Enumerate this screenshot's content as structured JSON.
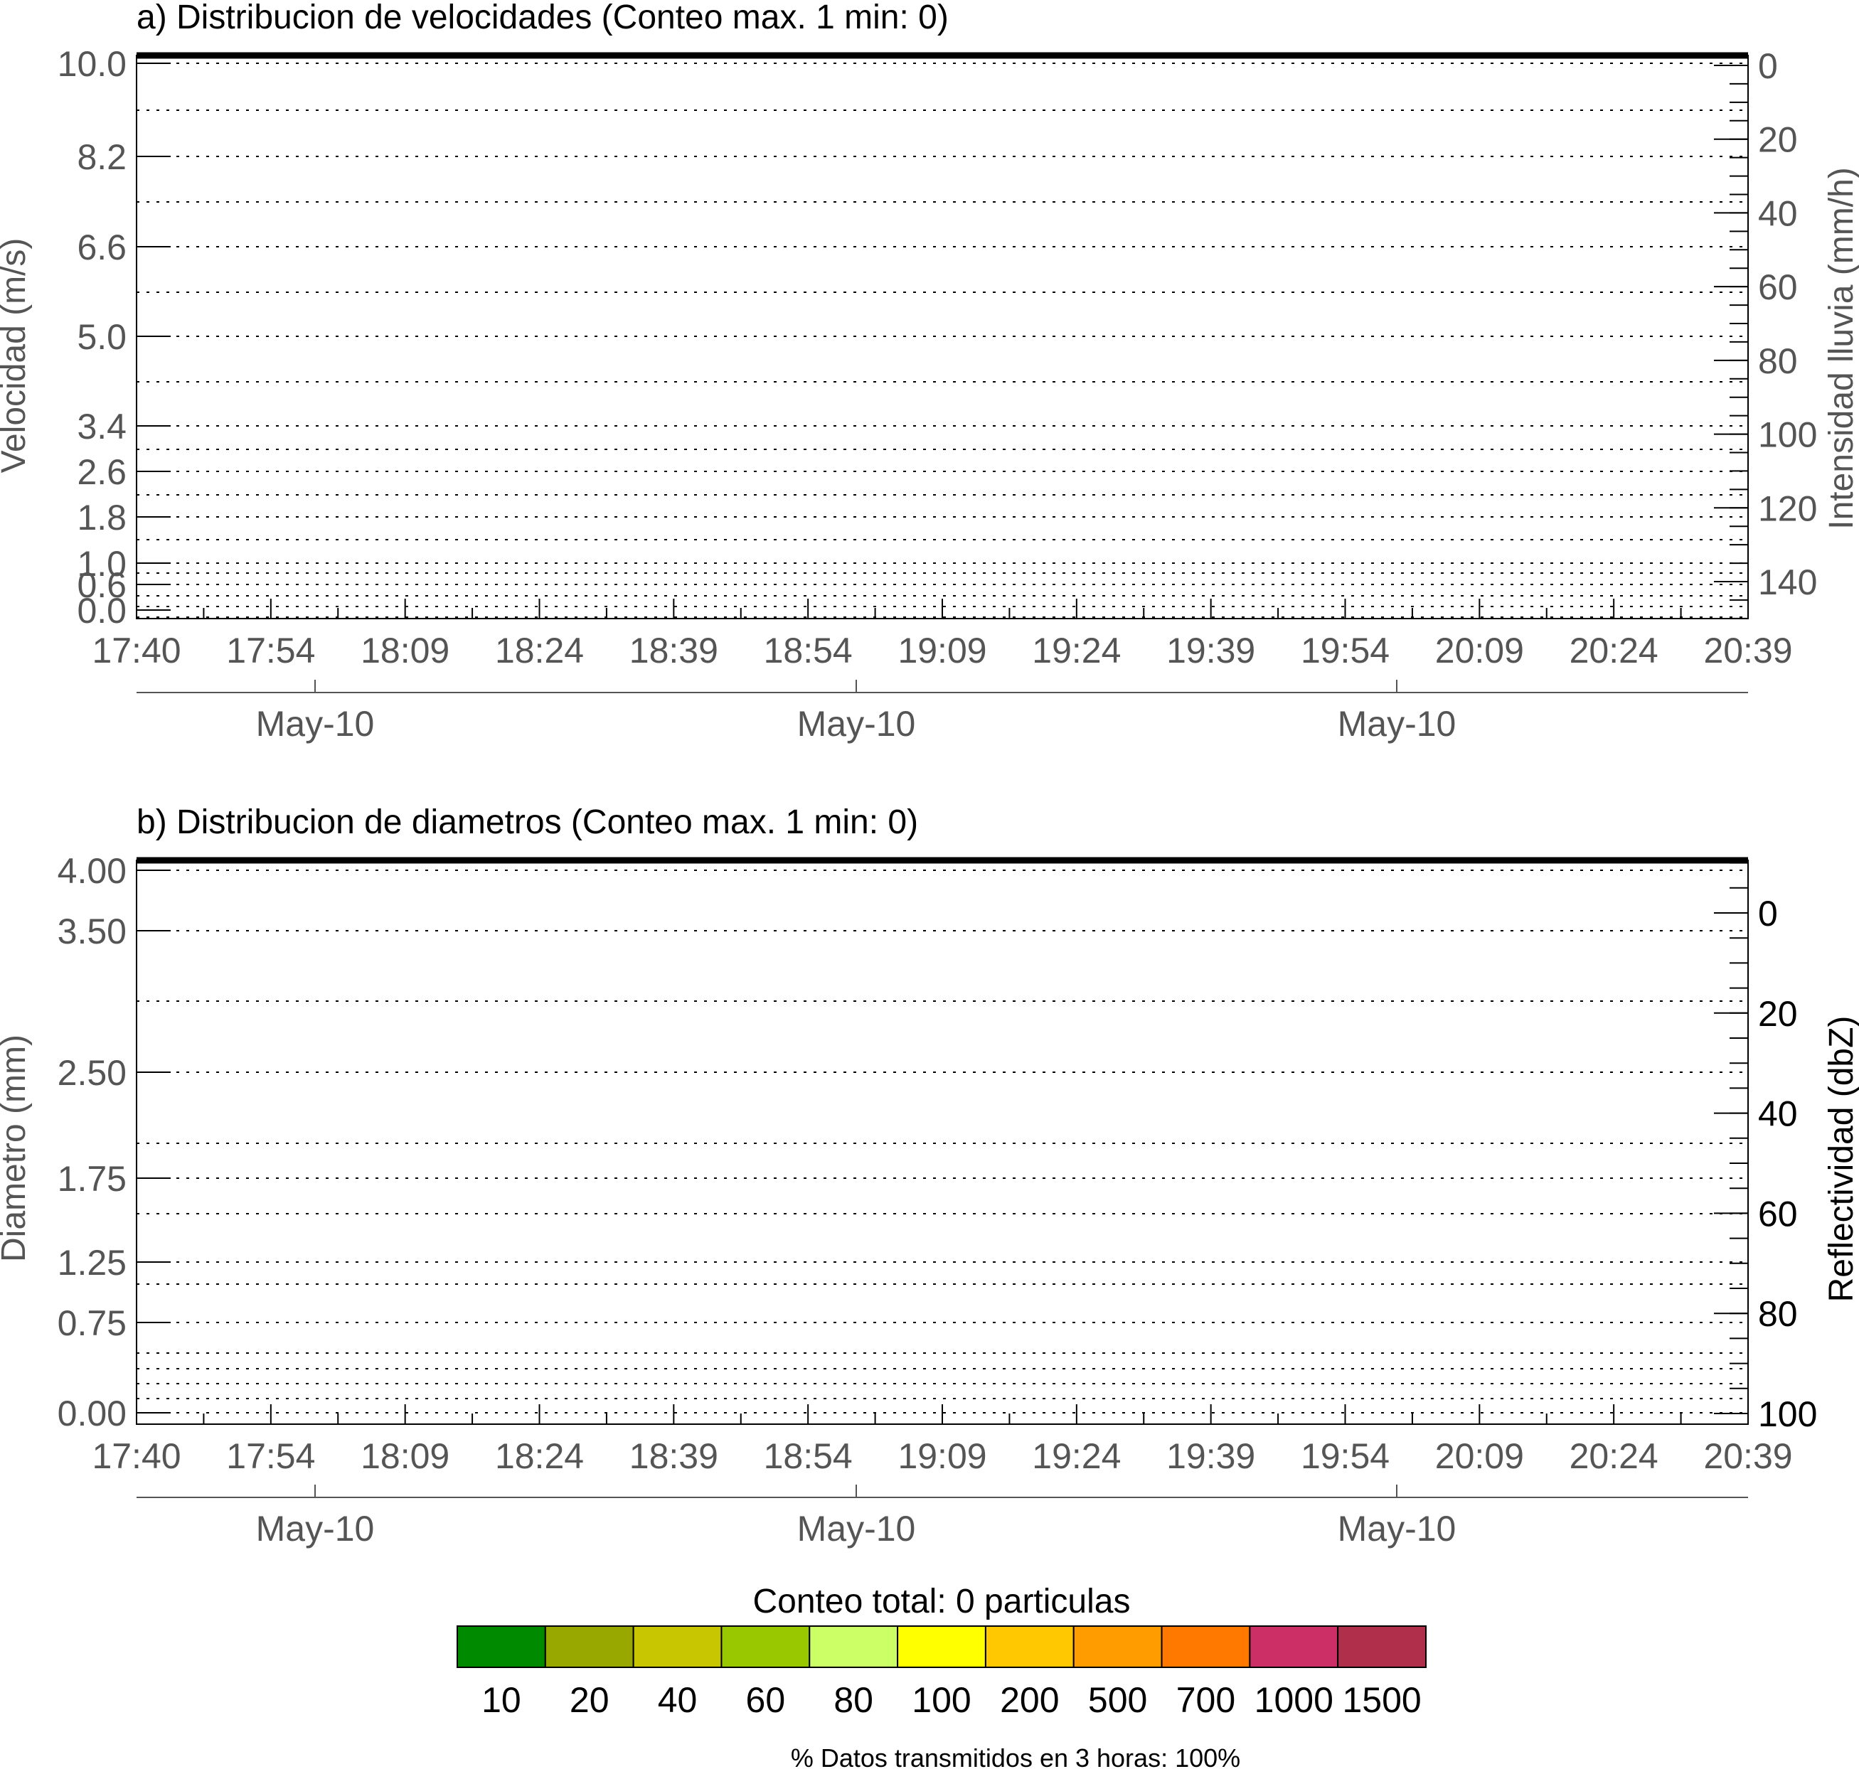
{
  "chart_data": [
    {
      "type": "heatmap",
      "title": "a) Distribucion de velocidades (Conteo max. 1 min: 0)",
      "ylabel": "Velocidad (m/s)",
      "y_ticks": [
        "0.0",
        "0.6",
        "1.0",
        "1.8",
        "2.6",
        "3.4",
        "5.0",
        "6.6",
        "8.2",
        "10.0"
      ],
      "y_right_label": "Intensidad lluvia (mm/h)",
      "y_right_ticks": [
        "0",
        "20",
        "40",
        "60",
        "80",
        "100",
        "120",
        "140"
      ],
      "y_right_lim": [
        0,
        150
      ],
      "x_ticks": [
        "17:40",
        "17:54",
        "18:09",
        "18:24",
        "18:39",
        "18:54",
        "19:09",
        "19:24",
        "19:39",
        "19:54",
        "20:09",
        "20:24",
        "20:39"
      ],
      "date_ticks": [
        "May-10",
        "May-10",
        "May-10"
      ],
      "grid": true,
      "values": []
    },
    {
      "type": "heatmap",
      "title": "b) Distribucion de diametros (Conteo max. 1 min: 0)",
      "ylabel": "Diametro (mm)",
      "y_ticks": [
        "0.00",
        "0.75",
        "1.25",
        "1.75",
        "2.50",
        "3.50",
        "4.00"
      ],
      "y_right_label": "Reflectividad (dbZ)",
      "y_right_ticks": [
        "0",
        "20",
        "40",
        "60",
        "80",
        "100"
      ],
      "y_right_lim": [
        -10,
        100
      ],
      "x_ticks": [
        "17:40",
        "17:54",
        "18:09",
        "18:24",
        "18:39",
        "18:54",
        "19:09",
        "19:24",
        "19:39",
        "19:54",
        "20:09",
        "20:24",
        "20:39"
      ],
      "date_ticks": [
        "May-10",
        "May-10",
        "May-10"
      ],
      "grid": true,
      "values": []
    }
  ],
  "colorbar": {
    "title": "Conteo total: 0 particulas",
    "items": [
      {
        "label": "10",
        "color": "#008a00"
      },
      {
        "label": "20",
        "color": "#99a800"
      },
      {
        "label": "40",
        "color": "#c7c600"
      },
      {
        "label": "60",
        "color": "#99c800"
      },
      {
        "label": "80",
        "color": "#ccff66"
      },
      {
        "label": "100",
        "color": "#ffff00"
      },
      {
        "label": "200",
        "color": "#ffc800"
      },
      {
        "label": "500",
        "color": "#ff9c00"
      },
      {
        "label": "700",
        "color": "#ff7800"
      },
      {
        "label": "1000",
        "color": "#cc2e66"
      },
      {
        "label": "1500",
        "color": "#b0304b"
      }
    ]
  },
  "footer": "% Datos transmitidos en 3 horas: 100%"
}
